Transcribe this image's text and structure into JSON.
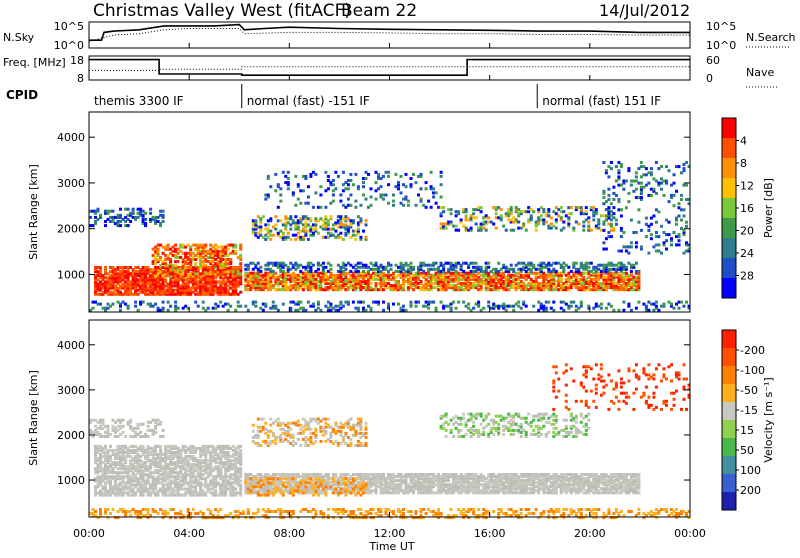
{
  "header": {
    "title": "Christmas Valley West (fitACF)",
    "beam": "Beam 22",
    "date": "14/Jul/2012"
  },
  "chart_data": [
    {
      "type": "line",
      "panel": "noise",
      "left_label": "N.Sky",
      "right_label": "N.Search",
      "y_ticks_left": [
        "10^5",
        "10^0"
      ],
      "y_ticks_right": [
        "10^5",
        "10^0"
      ],
      "series": [
        {
          "name": "N.Sky",
          "style": "solid",
          "x": [
            0,
            0.5,
            0.6,
            1.0,
            2.0,
            3.0,
            4.0,
            5.0,
            6.0,
            6.2,
            7.0,
            8.0,
            10.0,
            12.0,
            14.0,
            16.0,
            18.0,
            20.0,
            22.0,
            24.0
          ],
          "y": [
            0.3,
            0.3,
            0.6,
            0.65,
            0.7,
            0.85,
            0.85,
            0.85,
            0.9,
            0.7,
            0.75,
            0.8,
            0.75,
            0.72,
            0.7,
            0.68,
            0.65,
            0.65,
            0.6,
            0.6
          ]
        },
        {
          "name": "N.Search",
          "style": "dotted",
          "x": [
            0,
            1,
            2,
            3,
            4,
            5,
            6,
            6.2,
            8,
            10,
            12,
            14,
            16,
            18,
            20,
            22,
            24
          ],
          "y": [
            0.25,
            0.5,
            0.55,
            0.7,
            0.75,
            0.75,
            0.75,
            0.55,
            0.6,
            0.6,
            0.58,
            0.55,
            0.55,
            0.52,
            0.52,
            0.5,
            0.5
          ]
        }
      ]
    },
    {
      "type": "line",
      "panel": "frequency",
      "left_label": "Freq. [MHz]",
      "right_label": "Nave",
      "y_ticks_left": [
        "18",
        "8"
      ],
      "y_ticks_right": [
        "60",
        "0"
      ],
      "series": [
        {
          "name": "Freq.",
          "style": "solid",
          "x": [
            0,
            2.8,
            2.8,
            6.1,
            6.1,
            15.1,
            15.1,
            24
          ],
          "y": [
            0.85,
            0.85,
            0.25,
            0.25,
            0.2,
            0.2,
            0.85,
            0.85
          ]
        },
        {
          "name": "Nave",
          "style": "dotted",
          "x": [
            0,
            2.8,
            2.8,
            6.1,
            6.1,
            24
          ],
          "y": [
            0.4,
            0.4,
            0.45,
            0.45,
            0.55,
            0.55
          ]
        }
      ]
    },
    {
      "type": "heatmap",
      "panel": "power",
      "ylabel": "Slant Range [km]",
      "y_ticks": [
        "1000",
        "2000",
        "3000",
        "4000"
      ],
      "ylim": [
        180,
        4550
      ],
      "colorbar_label": "Power [dB]",
      "colorbar_ticks": [
        "4",
        "8",
        "12",
        "16",
        "20",
        "24",
        "28"
      ],
      "colorbar_colors": [
        "#0000ff",
        "#1e4fc8",
        "#2f7d8a",
        "#3e9a48",
        "#78c83c",
        "#ffc000",
        "#ff9000",
        "#ff5000",
        "#ff0000"
      ]
    },
    {
      "type": "heatmap",
      "panel": "velocity",
      "ylabel": "Slant Range [km]",
      "y_ticks": [
        "1000",
        "2000",
        "3000",
        "4000"
      ],
      "ylim": [
        180,
        4550
      ],
      "colorbar_label": "Velocity [m s⁻¹]",
      "colorbar_ticks": [
        "200",
        "100",
        "50",
        "15",
        "-15",
        "-50",
        "-100",
        "-200"
      ],
      "colorbar_colors": [
        "#2020b0",
        "#3a60d0",
        "#4090a0",
        "#48b848",
        "#90d050",
        "#c8c8c0",
        "#ffb020",
        "#ff8000",
        "#ff5000",
        "#ff2000"
      ]
    }
  ],
  "cpid": {
    "label": "CPID",
    "segments": [
      {
        "text": "themis 3300 IF",
        "start": 0.0
      },
      {
        "text": "normal (fast) -151 IF",
        "start": 6.1
      },
      {
        "text": "normal (fast) 151 IF",
        "start": 17.9
      }
    ]
  },
  "x_axis": {
    "label": "Time UT",
    "ticks": [
      "00:00",
      "04:00",
      "08:00",
      "12:00",
      "16:00",
      "20:00",
      "00:00"
    ]
  }
}
